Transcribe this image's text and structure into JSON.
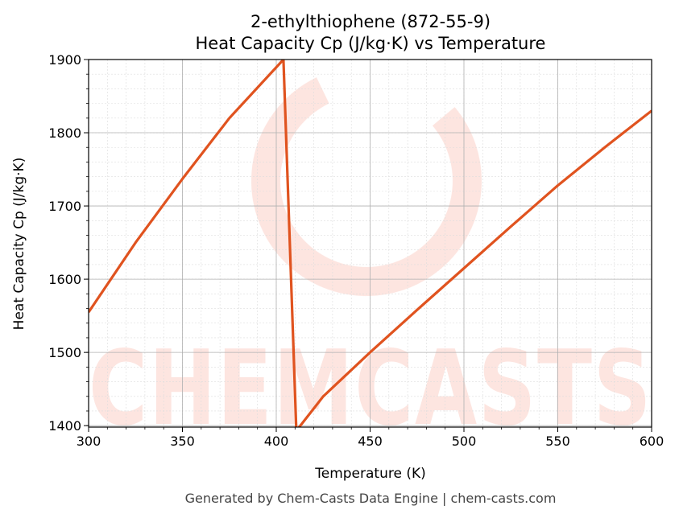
{
  "chart_data": {
    "type": "line",
    "title": "2-ethylthiophene (872-55-9)",
    "subtitle": "Heat Capacity Cp (J/kg·K) vs Temperature",
    "xlabel": "Temperature (K)",
    "ylabel": "Heat Capacity Cp (J/kg·K)",
    "xlim": [
      300,
      600
    ],
    "ylim": [
      1398,
      1900
    ],
    "xticks": [
      300,
      350,
      400,
      450,
      500,
      550,
      600
    ],
    "yticks": [
      1400,
      1500,
      1600,
      1700,
      1800,
      1900
    ],
    "grid": true,
    "series": [
      {
        "name": "Cp",
        "color": "#e0531f",
        "x": [
          300,
          325,
          350,
          375,
          403.8,
          410.7,
          425,
          450,
          475,
          500,
          525,
          550,
          575,
          600
        ],
        "y": [
          1555,
          1650,
          1737,
          1820,
          1900,
          1393,
          1440,
          1500,
          1558,
          1615,
          1672,
          1728,
          1780,
          1830
        ]
      }
    ],
    "watermark": "CHEMCASTS",
    "footer": "Generated by Chem-Casts Data Engine | chem-casts.com"
  }
}
